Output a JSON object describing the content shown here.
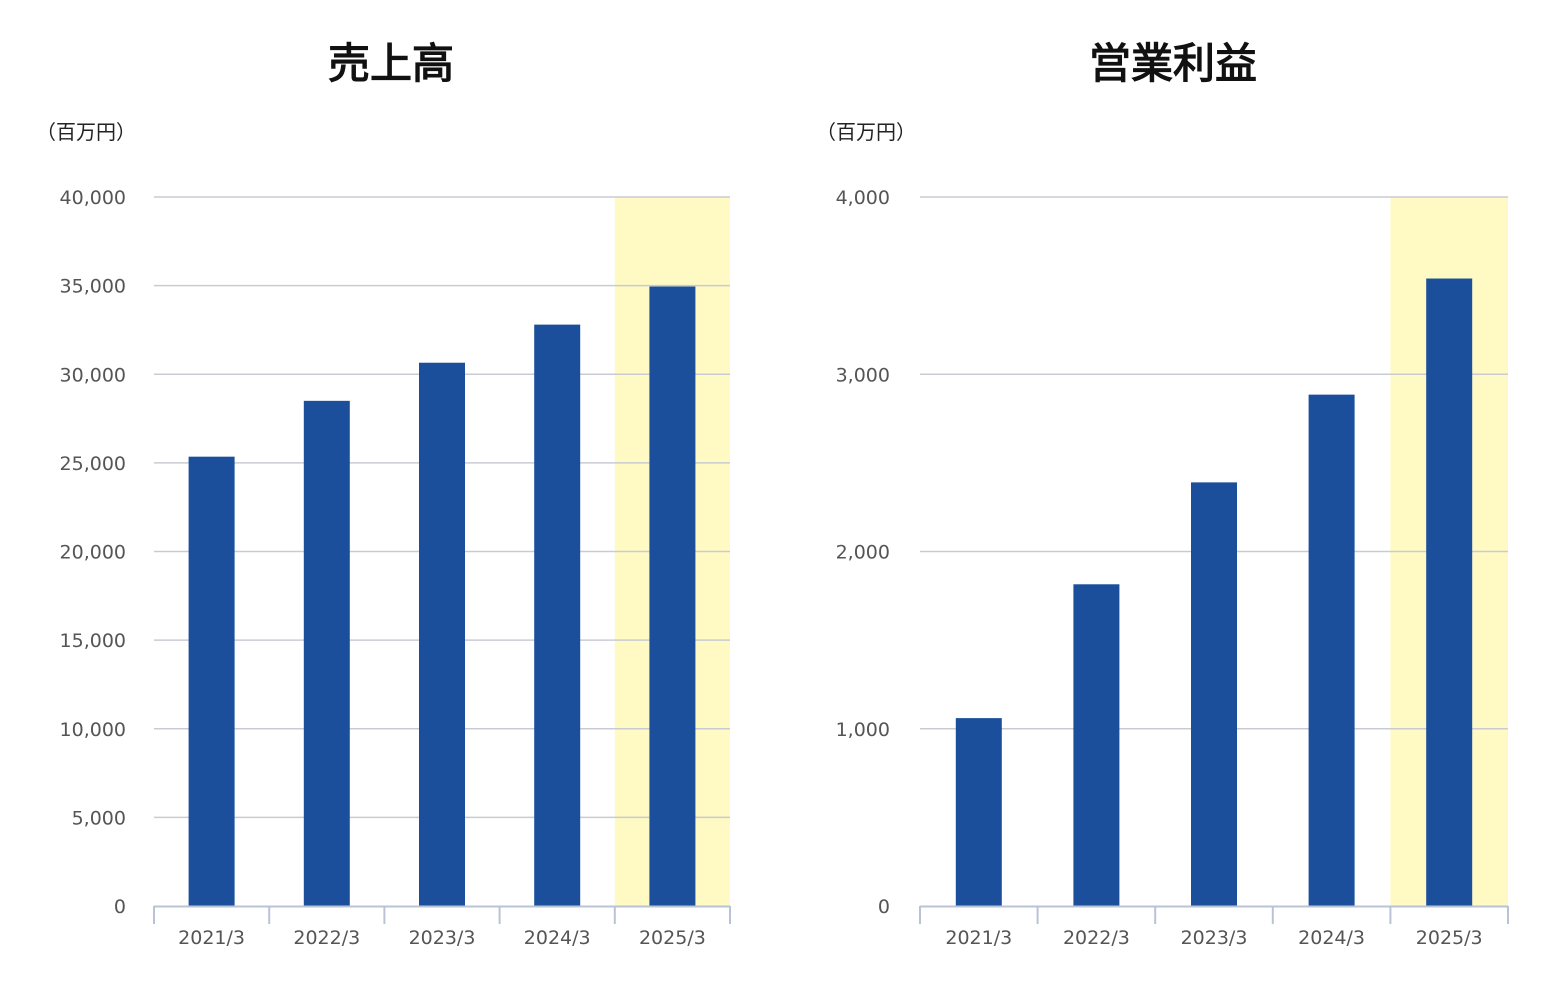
{
  "chart_data": [
    {
      "type": "bar",
      "title": "売上高",
      "unit_label": "（百万円）",
      "categories": [
        "2021/3",
        "2022/3",
        "2023/3",
        "2024/3",
        "2025/3"
      ],
      "values": [
        25350,
        28500,
        30650,
        32800,
        34950
      ],
      "ylim": [
        0,
        40000
      ],
      "yticks": [
        0,
        5000,
        10000,
        15000,
        20000,
        25000,
        30000,
        35000,
        40000
      ],
      "ytick_labels": [
        "0",
        "5,000",
        "10,000",
        "15,000",
        "20,000",
        "25,000",
        "30,000",
        "35,000",
        "40,000"
      ],
      "highlight_category": "2025/3",
      "bar_color": "#1b4f9c",
      "highlight_color": "#fff9c4",
      "grid": true,
      "legend": "none"
    },
    {
      "type": "bar",
      "title": "営業利益",
      "unit_label": "（百万円）",
      "categories": [
        "2021/3",
        "2022/3",
        "2023/3",
        "2024/3",
        "2025/3"
      ],
      "values": [
        1060,
        1815,
        2390,
        2885,
        3540
      ],
      "ylim": [
        0,
        4000
      ],
      "yticks": [
        0,
        1000,
        2000,
        3000,
        4000
      ],
      "ytick_labels": [
        "0",
        "1,000",
        "2,000",
        "3,000",
        "4,000"
      ],
      "highlight_category": "2025/3",
      "bar_color": "#1b4f9c",
      "highlight_color": "#fff9c4",
      "grid": true,
      "legend": "none"
    }
  ],
  "colors": {
    "grid": "#c8ccd2",
    "axis": "#b8c4d6",
    "tick_text": "#555555"
  }
}
